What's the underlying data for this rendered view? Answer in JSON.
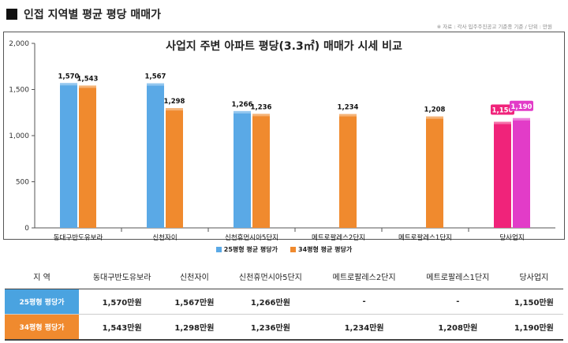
{
  "header": {
    "title": "인접 지역별 평균 평당 매매가"
  },
  "source_note": "※ 자료 : 각사 입주주진공고 기준종 기준 / 단위 : 만원",
  "colors": {
    "s25": "#5aa9e6",
    "s34": "#f08a2e",
    "hl_a": "#f0237a",
    "hl_b": "#e23cc8"
  },
  "chart_data": {
    "type": "bar",
    "title": "사업지 주변 아파트 평당(3.3㎡) 매매가 시세 비교",
    "categories": [
      "동대구반도유보라",
      "신천자이",
      "신천휴먼시아5단지",
      "메트로팔레스2단지",
      "메트로팔레스1단지",
      "당사업지"
    ],
    "series": [
      {
        "name": "25평형 평균 평당가",
        "values": [
          1570,
          1567,
          1266,
          null,
          null,
          1150
        ]
      },
      {
        "name": "34평형 평균 평당가",
        "values": [
          1543,
          1298,
          1236,
          1234,
          1208,
          1190
        ]
      }
    ],
    "data_labels": [
      [
        "1,570",
        "1,567",
        "1,266",
        "",
        "",
        "1,150"
      ],
      [
        "1,543",
        "1,298",
        "1,236",
        "1,234",
        "1,208",
        "1,190"
      ]
    ],
    "yticks": [
      "0",
      "500",
      "1,000",
      "1,500",
      "2,000"
    ],
    "ylim": [
      0,
      2000
    ],
    "legend_position": "bottom"
  },
  "table": {
    "headers": [
      "지 역",
      "동대구반도유보라",
      "신천자이",
      "신천휴먼시아5단지",
      "메트로팔레스2단지",
      "메트로팔레스1단지",
      "당사업지"
    ],
    "rows": [
      {
        "label": "25평형 평당가",
        "cells": [
          "1,570만원",
          "1,567만원",
          "1,266만원",
          "-",
          "-",
          "1,150만원"
        ]
      },
      {
        "label": "34평형 평당가",
        "cells": [
          "1,543만원",
          "1,298만원",
          "1,236만원",
          "1,234만원",
          "1,208만원",
          "1,190만원"
        ]
      }
    ]
  }
}
